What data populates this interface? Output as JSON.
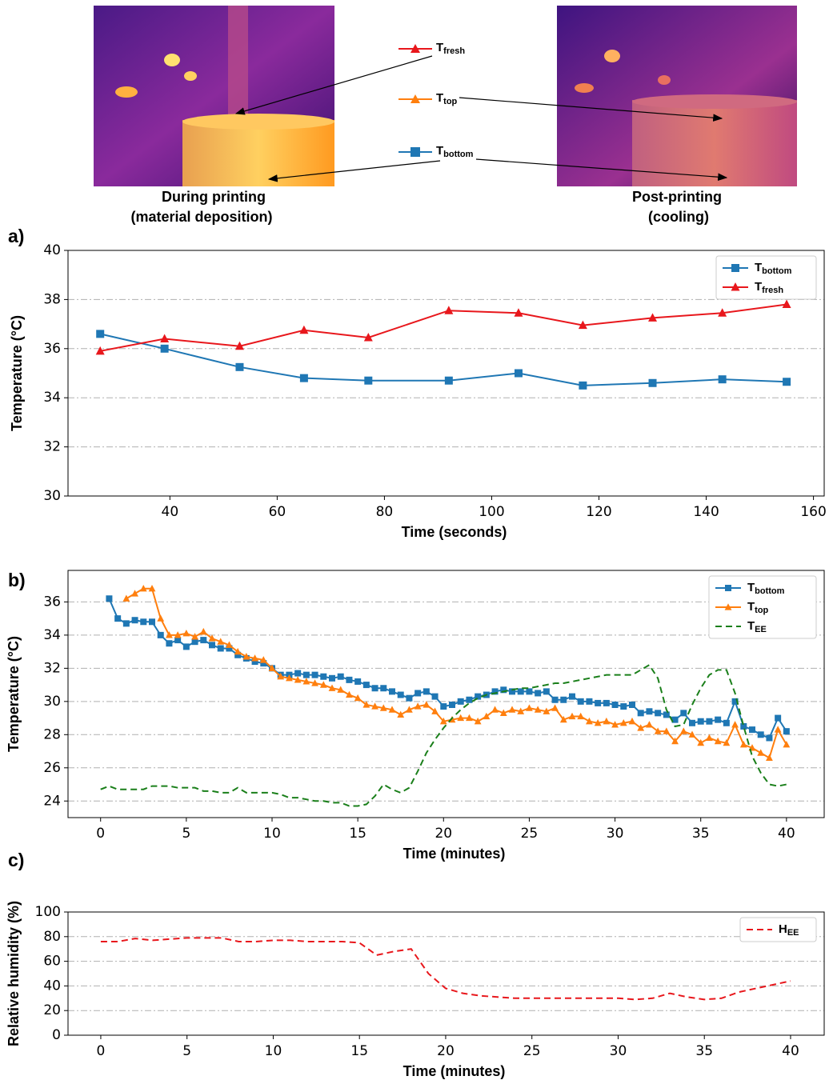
{
  "figure": {
    "left_caption": [
      "During printing",
      "(material deposition)"
    ],
    "right_caption": [
      "Post-printing",
      "(cooling)"
    ],
    "legend": [
      {
        "name": "T",
        "name_sub": "fresh",
        "color": "#e8171c"
      },
      {
        "name": "T",
        "name_sub": "top",
        "color": "#ff7f0e"
      },
      {
        "name": "T",
        "name_sub": "bottom",
        "color": "#1f77b4"
      }
    ]
  },
  "chart_data": [
    {
      "type": "line",
      "panel": "a)",
      "xlabel": "Time (seconds)",
      "ylabel": "Temperature (°C)",
      "x": [
        27,
        39,
        53,
        65,
        77,
        92,
        105,
        117,
        130,
        143,
        155
      ],
      "xlim": [
        21,
        162
      ],
      "xticks": [
        40,
        60,
        80,
        100,
        120,
        140,
        160
      ],
      "ylim": [
        30,
        40
      ],
      "yticks": [
        30,
        32,
        34,
        36,
        38,
        40
      ],
      "grid": true,
      "legend": "upper right",
      "series": [
        {
          "name": "T",
          "name_sub": "bottom",
          "color": "#1f77b4",
          "marker": "square",
          "linestyle": "solid",
          "values": [
            36.6,
            36.0,
            35.25,
            34.8,
            34.7,
            34.7,
            35.0,
            34.5,
            34.6,
            34.75,
            34.65
          ]
        },
        {
          "name": "T",
          "name_sub": "fresh",
          "color": "#e8171c",
          "marker": "triangle",
          "linestyle": "solid",
          "values": [
            35.9,
            36.4,
            36.1,
            36.75,
            36.45,
            37.55,
            37.45,
            36.95,
            37.25,
            37.45,
            37.8
          ]
        }
      ]
    },
    {
      "type": "line",
      "panel": "b)",
      "xlabel": "Time (minutes)",
      "ylabel": "Temperature (°C)",
      "x": [
        0,
        0.5,
        1,
        1.5,
        2,
        2.5,
        3,
        3.5,
        4,
        4.5,
        5,
        5.5,
        6,
        6.5,
        7,
        7.5,
        8,
        8.5,
        9,
        9.5,
        10,
        10.5,
        11,
        11.5,
        12,
        12.5,
        13,
        13.5,
        14,
        14.5,
        15,
        15.5,
        16,
        16.5,
        17,
        17.5,
        18,
        18.5,
        19,
        19.5,
        20,
        20.5,
        21,
        21.5,
        22,
        22.5,
        23,
        23.5,
        24,
        24.5,
        25,
        25.5,
        26,
        26.5,
        27,
        27.5,
        28,
        28.5,
        29,
        29.5,
        30,
        30.5,
        31,
        31.5,
        32,
        32.5,
        33,
        33.5,
        34,
        34.5,
        35,
        35.5,
        36,
        36.5,
        37,
        37.5,
        38,
        38.5,
        39,
        39.5,
        40
      ],
      "xlim": [
        -1.9,
        42.2
      ],
      "xticks": [
        0,
        5,
        10,
        15,
        20,
        25,
        30,
        35,
        40
      ],
      "ylim": [
        23.0,
        37.9
      ],
      "yticks": [
        24,
        26,
        28,
        30,
        32,
        34,
        36
      ],
      "grid": true,
      "legend": "upper right",
      "series": [
        {
          "name": "T",
          "name_sub": "bottom",
          "color": "#1f77b4",
          "marker": "square",
          "linestyle": "solid",
          "values": [
            null,
            36.2,
            35.0,
            34.7,
            34.9,
            34.8,
            34.8,
            34.0,
            33.5,
            33.7,
            33.3,
            33.6,
            33.7,
            33.4,
            33.2,
            33.2,
            32.8,
            32.6,
            32.4,
            32.3,
            32.0,
            31.6,
            31.6,
            31.7,
            31.6,
            31.6,
            31.5,
            31.4,
            31.5,
            31.3,
            31.2,
            31.0,
            30.8,
            30.8,
            30.6,
            30.4,
            30.2,
            30.5,
            30.6,
            30.3,
            29.7,
            29.8,
            30.0,
            30.1,
            30.3,
            30.4,
            30.6,
            30.7,
            30.6,
            30.6,
            30.6,
            30.5,
            30.6,
            30.1,
            30.1,
            30.3,
            30.0,
            30.0,
            29.9,
            29.9,
            29.8,
            29.7,
            29.8,
            29.3,
            29.4,
            29.3,
            29.2,
            28.9,
            29.3,
            28.7,
            28.8,
            28.8,
            28.9,
            28.7,
            30.0,
            28.5,
            28.3,
            28.0,
            27.8,
            29.0,
            28.2
          ]
        },
        {
          "name": "T",
          "name_sub": "top",
          "color": "#ff7f0e",
          "marker": "triangle",
          "linestyle": "solid",
          "values": [
            null,
            null,
            null,
            36.2,
            36.5,
            36.8,
            36.8,
            35.0,
            34.0,
            34.0,
            34.1,
            33.9,
            34.2,
            33.8,
            33.6,
            33.4,
            33.0,
            32.7,
            32.6,
            32.5,
            32.0,
            31.5,
            31.4,
            31.3,
            31.2,
            31.1,
            31.0,
            30.8,
            30.7,
            30.4,
            30.2,
            29.8,
            29.7,
            29.6,
            29.5,
            29.2,
            29.5,
            29.7,
            29.8,
            29.4,
            28.8,
            28.9,
            29.0,
            29.0,
            28.8,
            29.1,
            29.5,
            29.3,
            29.5,
            29.4,
            29.6,
            29.5,
            29.4,
            29.6,
            28.9,
            29.1,
            29.1,
            28.8,
            28.7,
            28.8,
            28.6,
            28.7,
            28.8,
            28.4,
            28.6,
            28.2,
            28.2,
            27.6,
            28.2,
            28.0,
            27.5,
            27.8,
            27.6,
            27.5,
            28.6,
            27.4,
            27.2,
            26.9,
            26.6,
            28.3,
            27.4
          ]
        },
        {
          "name": "T",
          "name_sub": "EE",
          "color": "#1a7f1a",
          "marker": null,
          "linestyle": "dashed",
          "values": [
            24.7,
            24.9,
            24.7,
            24.7,
            24.7,
            24.7,
            24.9,
            24.9,
            24.9,
            24.8,
            24.8,
            24.8,
            24.6,
            24.6,
            24.5,
            24.5,
            24.8,
            24.5,
            24.5,
            24.5,
            24.5,
            24.4,
            24.2,
            24.2,
            24.1,
            24.0,
            24.0,
            23.9,
            23.9,
            23.7,
            23.7,
            23.8,
            24.3,
            25.0,
            24.7,
            24.5,
            24.8,
            25.8,
            26.9,
            27.7,
            28.4,
            29.0,
            29.5,
            29.9,
            30.2,
            30.4,
            30.5,
            30.6,
            30.7,
            30.8,
            30.8,
            30.9,
            31.0,
            31.1,
            31.1,
            31.2,
            31.3,
            31.4,
            31.5,
            31.6,
            31.6,
            31.6,
            31.6,
            31.9,
            32.2,
            31.4,
            29.5,
            28.5,
            28.6,
            29.8,
            30.8,
            31.6,
            31.9,
            31.9,
            30.5,
            28.5,
            26.7,
            25.7,
            25.0,
            24.9,
            25.0
          ]
        }
      ]
    },
    {
      "type": "line",
      "panel": "c)",
      "xlabel": "Time (minutes)",
      "ylabel": "Relative humidity (%)",
      "x": [
        0,
        1,
        2,
        3,
        4,
        5,
        6,
        7,
        8,
        9,
        10,
        11,
        12,
        13,
        14,
        15,
        16,
        17,
        18,
        19,
        20,
        21,
        22,
        23,
        24,
        25,
        26,
        27,
        28,
        29,
        30,
        31,
        32,
        33,
        34,
        35,
        36,
        37,
        38,
        39,
        40
      ],
      "xlim": [
        -1.9,
        41.95
      ],
      "xticks": [
        0,
        5,
        10,
        15,
        20,
        25,
        30,
        35,
        40
      ],
      "ylim": [
        0,
        100
      ],
      "yticks": [
        0,
        20,
        40,
        60,
        80,
        100
      ],
      "grid": true,
      "legend": "upper right",
      "series": [
        {
          "name": "H",
          "name_sub": "EE",
          "color": "#e8171c",
          "marker": null,
          "linestyle": "dashed",
          "values": [
            76,
            76,
            78.5,
            77,
            78,
            79,
            79,
            79,
            76,
            76,
            77,
            77,
            76,
            76,
            76,
            75,
            65,
            68,
            70,
            50,
            38,
            34,
            32,
            31,
            30,
            30,
            30,
            30,
            30,
            30,
            30,
            29,
            30,
            34,
            31,
            29,
            30,
            35,
            38,
            41,
            44
          ]
        }
      ]
    }
  ]
}
